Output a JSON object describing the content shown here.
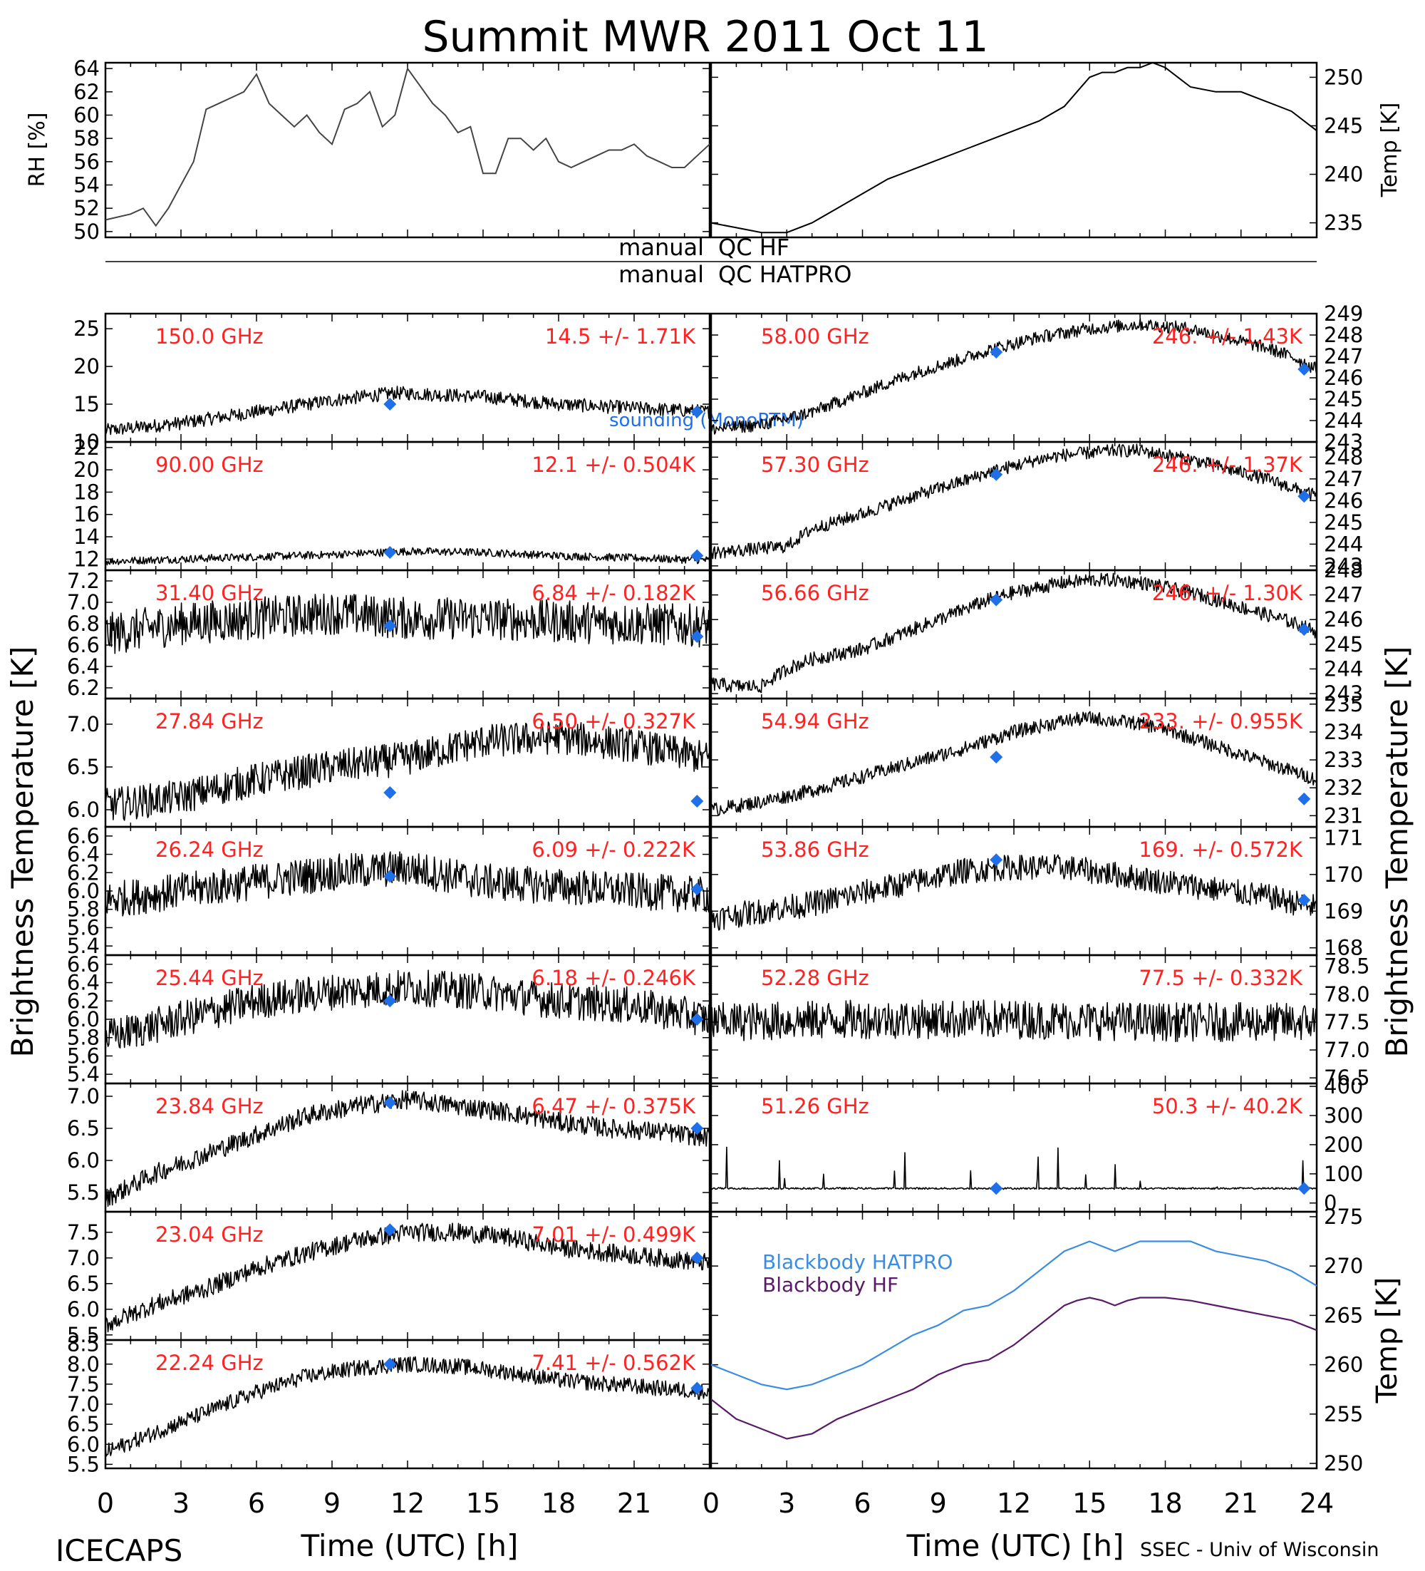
{
  "figure": {
    "title": "Summit MWR 2011 Oct 11",
    "footer_left": "ICECAPS",
    "footer_right": "SSEC - Univ of Wisconsin",
    "xlabel": "Time (UTC) [h]",
    "ylabel_left": "Brightness Temperature [K]",
    "ylabel_right": "Brightness Temperature [K]",
    "qc_labels": [
      {
        "left": "manual",
        "right": "QC HF"
      },
      {
        "left": "manual",
        "right": "QC HATPRO"
      }
    ],
    "sounding_legend": "sounding (MonoRTM)",
    "colors": {
      "trace": "#000000",
      "channel_label": "#ff2222",
      "sounding": "#1e6fe8",
      "bb_hatpro": "#3a8de0",
      "bb_hf": "#5a1a6a"
    }
  },
  "chart_data": [
    {
      "id": "rh",
      "type": "line",
      "ylabel": "RH [%]",
      "ylim": [
        49.5,
        64.5
      ],
      "yticks": [
        50,
        52,
        54,
        56,
        58,
        60,
        62,
        64
      ],
      "xlim": [
        0,
        24
      ],
      "x": [
        0,
        1,
        1.5,
        2,
        2.5,
        3,
        3.5,
        4,
        4.5,
        5,
        5.5,
        6,
        6.5,
        7,
        7.5,
        8,
        8.5,
        9,
        9.5,
        10,
        10.5,
        11,
        11.5,
        12,
        12.5,
        13,
        13.5,
        14,
        14.5,
        15,
        15.5,
        16,
        16.5,
        17,
        17.5,
        18,
        18.5,
        19,
        19.5,
        20,
        20.5,
        21,
        21.5,
        22,
        22.5,
        23,
        23.5,
        24
      ],
      "values": [
        51,
        51.5,
        52,
        50.5,
        52,
        54,
        56,
        60.5,
        61,
        61.5,
        62,
        63.5,
        61,
        60,
        59,
        60,
        58.5,
        57.5,
        60.5,
        61,
        62,
        59,
        60,
        64,
        62.5,
        61,
        60,
        58.5,
        59,
        55,
        55,
        58,
        58,
        57,
        58,
        56,
        55.5,
        56,
        56.5,
        57,
        57,
        57.5,
        56.5,
        56,
        55.5,
        55.5,
        56.5,
        57.5
      ]
    },
    {
      "id": "temp",
      "type": "line",
      "ylabel": "Temp [K]",
      "ylim": [
        233.5,
        251.5
      ],
      "yticks": [
        235,
        240,
        245,
        250
      ],
      "xlim": [
        0,
        24
      ],
      "x": [
        0,
        1,
        2,
        3,
        4,
        5,
        6,
        7,
        8,
        9,
        10,
        11,
        12,
        13,
        14,
        14.5,
        15,
        15.5,
        16,
        16.5,
        17,
        17.5,
        18,
        18.5,
        19,
        20,
        21,
        22,
        23,
        23.5,
        24
      ],
      "values": [
        235,
        234.5,
        234,
        234,
        235,
        236.5,
        238,
        239.5,
        240.5,
        241.5,
        242.5,
        243.5,
        244.5,
        245.5,
        247,
        248.5,
        250,
        250.5,
        250.5,
        251,
        251,
        251.5,
        251,
        250,
        249,
        248.5,
        248.5,
        247.5,
        246.5,
        245.5,
        244.5
      ]
    },
    {
      "id": "ch150",
      "side": "left",
      "label": "150.0 GHz",
      "stats": "14.5 +/-  1.71K",
      "ylim": [
        10,
        27
      ],
      "yticks": [
        10,
        15,
        20,
        25
      ],
      "noise": 0.9,
      "x": [
        0,
        3,
        6,
        9,
        11.5,
        15,
        18,
        21,
        24
      ],
      "values": [
        11.5,
        12.5,
        14,
        15.5,
        16.5,
        16,
        15,
        14.5,
        14
      ],
      "sounding": [
        [
          11.3,
          15
        ],
        [
          23.5,
          14
        ]
      ]
    },
    {
      "id": "ch90",
      "side": "left",
      "label": "90.00 GHz",
      "stats": "12.1 +/- 0.504K",
      "ylim": [
        11,
        22.5
      ],
      "yticks": [
        12,
        14,
        16,
        18,
        20,
        22
      ],
      "noise": 0.35,
      "x": [
        0,
        3,
        6,
        9,
        12,
        15,
        18,
        21,
        24
      ],
      "values": [
        11.8,
        12,
        12.2,
        12.4,
        12.7,
        12.6,
        12.3,
        12.1,
        11.9
      ],
      "sounding": [
        [
          11.3,
          12.6
        ],
        [
          23.5,
          12.3
        ]
      ]
    },
    {
      "id": "ch3140",
      "side": "left",
      "label": "31.40 GHz",
      "stats": "6.84 +/- 0.182K",
      "ylim": [
        6.1,
        7.3
      ],
      "yticks": [
        6.2,
        6.4,
        6.6,
        6.8,
        7.0,
        7.2
      ],
      "noise": 0.2,
      "x": [
        0,
        3,
        6,
        9,
        12,
        15,
        18,
        21,
        24
      ],
      "values": [
        6.7,
        6.8,
        6.85,
        6.9,
        6.85,
        6.85,
        6.82,
        6.8,
        6.78
      ],
      "sounding": [
        [
          11.3,
          6.78
        ],
        [
          23.5,
          6.68
        ]
      ]
    },
    {
      "id": "ch2784",
      "side": "left",
      "label": "27.84 GHz",
      "stats": "6.50 +/- 0.327K",
      "ylim": [
        5.8,
        7.3
      ],
      "yticks": [
        6.0,
        6.5,
        7.0
      ],
      "noise": 0.2,
      "x": [
        0,
        3,
        6,
        9,
        12,
        15,
        18,
        21,
        24
      ],
      "values": [
        6.05,
        6.15,
        6.35,
        6.5,
        6.6,
        6.8,
        6.85,
        6.75,
        6.6
      ],
      "sounding": [
        [
          11.3,
          6.2
        ],
        [
          23.5,
          6.1
        ]
      ]
    },
    {
      "id": "ch2624",
      "side": "left",
      "label": "26.24 GHz",
      "stats": "6.09 +/- 0.222K",
      "ylim": [
        5.3,
        6.7
      ],
      "yticks": [
        5.4,
        5.6,
        5.8,
        6.0,
        6.2,
        6.4,
        6.6
      ],
      "noise": 0.2,
      "x": [
        0,
        3,
        6,
        9,
        12,
        15,
        18,
        21,
        24
      ],
      "values": [
        5.9,
        6.0,
        6.1,
        6.2,
        6.25,
        6.1,
        6.05,
        6.0,
        5.95
      ],
      "sounding": [
        [
          11.3,
          6.16
        ],
        [
          23.5,
          6.02
        ]
      ]
    },
    {
      "id": "ch2544",
      "side": "left",
      "label": "25.44 GHz",
      "stats": "6.18 +/- 0.246K",
      "ylim": [
        5.3,
        6.7
      ],
      "yticks": [
        5.4,
        5.6,
        5.8,
        6.0,
        6.2,
        6.4,
        6.6
      ],
      "noise": 0.2,
      "x": [
        0,
        3,
        6,
        9,
        12,
        15,
        18,
        21,
        24
      ],
      "values": [
        5.8,
        6.0,
        6.2,
        6.3,
        6.35,
        6.3,
        6.2,
        6.15,
        6.0
      ],
      "sounding": [
        [
          11.3,
          6.2
        ],
        [
          23.5,
          6.0
        ]
      ]
    },
    {
      "id": "ch2384",
      "side": "left",
      "label": "23.84 GHz",
      "stats": "6.47 +/- 0.375K",
      "ylim": [
        5.2,
        7.2
      ],
      "yticks": [
        5.5,
        6.0,
        6.5,
        7.0
      ],
      "noise": 0.15,
      "x": [
        0,
        2,
        4,
        6,
        8,
        10,
        12,
        14,
        16,
        18,
        20,
        22,
        24
      ],
      "values": [
        5.4,
        5.8,
        6.1,
        6.4,
        6.7,
        6.85,
        6.95,
        6.85,
        6.75,
        6.6,
        6.5,
        6.45,
        6.35
      ],
      "sounding": [
        [
          11.3,
          6.9
        ],
        [
          23.5,
          6.5
        ]
      ]
    },
    {
      "id": "ch2304",
      "side": "left",
      "label": "23.04 GHz",
      "stats": "7.01 +/- 0.499K",
      "ylim": [
        5.4,
        7.9
      ],
      "yticks": [
        5.5,
        6.0,
        6.5,
        7.0,
        7.5
      ],
      "noise": 0.18,
      "x": [
        0,
        2,
        4,
        6,
        8,
        10,
        12,
        14,
        16,
        18,
        20,
        22,
        24
      ],
      "values": [
        5.7,
        6.1,
        6.4,
        6.8,
        7.1,
        7.35,
        7.5,
        7.5,
        7.4,
        7.2,
        7.1,
        7.0,
        6.9
      ],
      "sounding": [
        [
          11.3,
          7.55
        ],
        [
          23.5,
          7.0
        ]
      ]
    },
    {
      "id": "ch2224",
      "side": "left",
      "label": "22.24 GHz",
      "stats": "7.41 +/- 0.562K",
      "ylim": [
        5.4,
        8.6
      ],
      "yticks": [
        5.5,
        6.0,
        6.5,
        7.0,
        7.5,
        8.0,
        8.5
      ],
      "noise": 0.2,
      "x": [
        0,
        2,
        4,
        6,
        8,
        10,
        12,
        14,
        16,
        18,
        20,
        22,
        24
      ],
      "values": [
        5.8,
        6.3,
        6.8,
        7.3,
        7.7,
        7.9,
        8.0,
        7.95,
        7.8,
        7.6,
        7.5,
        7.4,
        7.3
      ],
      "sounding": [
        [
          11.3,
          8.0
        ],
        [
          23.5,
          7.4
        ]
      ]
    },
    {
      "id": "ch5800",
      "side": "right",
      "label": "58.00 GHz",
      "stats": "246.  +/-  1.43K",
      "ylim": [
        243,
        249
      ],
      "yticks": [
        243,
        244,
        245,
        246,
        247,
        248,
        249
      ],
      "noise": 0.3,
      "x": [
        0,
        2,
        4,
        6,
        8,
        10,
        11,
        12,
        13,
        14,
        15,
        16,
        17,
        18,
        19,
        20,
        21,
        22,
        23,
        24
      ],
      "values": [
        243.6,
        243.8,
        244.4,
        245.3,
        246.2,
        246.9,
        247.3,
        247.6,
        247.9,
        248.1,
        248.3,
        248.4,
        248.5,
        248.4,
        248.3,
        248.0,
        247.7,
        247.4,
        247.0,
        246.4
      ],
      "sounding": [
        [
          11.3,
          247.2
        ],
        [
          23.5,
          246.4
        ]
      ]
    },
    {
      "id": "ch5730",
      "side": "right",
      "label": "57.30 GHz",
      "stats": "246.  +/-  1.37K",
      "ylim": [
        242.8,
        248.7
      ],
      "yticks": [
        243,
        244,
        245,
        246,
        247,
        248
      ],
      "noise": 0.3,
      "x": [
        0,
        2,
        3,
        4,
        6,
        8,
        10,
        11,
        12,
        13,
        14,
        15,
        16,
        17,
        18,
        19,
        20,
        21,
        22,
        23,
        24
      ],
      "values": [
        243.6,
        243.8,
        243.9,
        244.7,
        245.4,
        246.2,
        246.9,
        247.3,
        247.6,
        247.9,
        248.1,
        248.2,
        248.3,
        248.3,
        248.1,
        247.9,
        247.6,
        247.3,
        247.0,
        246.6,
        246.2
      ],
      "sounding": [
        [
          11.3,
          247.2
        ],
        [
          23.5,
          246.2
        ]
      ]
    },
    {
      "id": "ch5666",
      "side": "right",
      "label": "56.66 GHz",
      "stats": "246.  +/-  1.30K",
      "ylim": [
        242.8,
        248
      ],
      "yticks": [
        243,
        244,
        245,
        246,
        247,
        248
      ],
      "noise": 0.28,
      "x": [
        0,
        1,
        2,
        3,
        4,
        6,
        8,
        10,
        11,
        12,
        13,
        14,
        15,
        16,
        17,
        18,
        19,
        20,
        21,
        22,
        23,
        24
      ],
      "values": [
        243.4,
        243.3,
        243.3,
        244.0,
        244.4,
        244.8,
        245.6,
        246.4,
        246.8,
        247.1,
        247.3,
        247.5,
        247.6,
        247.6,
        247.5,
        247.3,
        247.1,
        246.8,
        246.5,
        246.2,
        245.9,
        245.5
      ],
      "sounding": [
        [
          11.3,
          246.8
        ],
        [
          23.5,
          245.6
        ]
      ]
    },
    {
      "id": "ch5494",
      "side": "right",
      "label": "54.94 GHz",
      "stats": "233.  +/- 0.955K",
      "ylim": [
        230.6,
        235.2
      ],
      "yticks": [
        231,
        232,
        233,
        234,
        235
      ],
      "noise": 0.25,
      "x": [
        0,
        2,
        4,
        6,
        8,
        10,
        11,
        12,
        13,
        14,
        15,
        16,
        17,
        18,
        19,
        20,
        21,
        22,
        23,
        24
      ],
      "values": [
        231.2,
        231.5,
        231.9,
        232.4,
        232.9,
        233.4,
        233.7,
        234.0,
        234.2,
        234.4,
        234.5,
        234.4,
        234.3,
        234.1,
        233.8,
        233.5,
        233.2,
        232.9,
        232.6,
        232.3
      ],
      "sounding": [
        [
          11.3,
          233.1
        ],
        [
          23.5,
          231.6
        ]
      ]
    },
    {
      "id": "ch5386",
      "side": "right",
      "label": "53.86 GHz",
      "stats": "169.  +/- 0.572K",
      "ylim": [
        167.8,
        171.3
      ],
      "yticks": [
        168,
        169,
        170,
        171
      ],
      "noise": 0.35,
      "x": [
        0,
        2,
        4,
        6,
        8,
        10,
        12,
        14,
        15,
        16,
        18,
        20,
        22,
        24
      ],
      "values": [
        168.8,
        169.0,
        169.2,
        169.5,
        169.8,
        170.1,
        170.2,
        170.2,
        170.1,
        170.0,
        169.8,
        169.6,
        169.4,
        169.1
      ],
      "sounding": [
        [
          11.3,
          170.4
        ],
        [
          23.5,
          169.3
        ]
      ]
    },
    {
      "id": "ch5228",
      "side": "right",
      "label": "52.28 GHz",
      "stats": "77.5 +/- 0.332K",
      "ylim": [
        76.4,
        78.7
      ],
      "yticks": [
        76.5,
        77.0,
        77.5,
        78.0,
        78.5
      ],
      "noise": 0.35,
      "x": [
        0,
        6,
        12,
        18,
        24
      ],
      "values": [
        77.5,
        77.55,
        77.55,
        77.5,
        77.5
      ],
      "sounding": []
    },
    {
      "id": "ch5126",
      "side": "right",
      "label": "51.26 GHz",
      "stats": "50.3 +/-  40.2K",
      "ylim": [
        -30,
        410
      ],
      "yticks": [
        0,
        100,
        200,
        300,
        400
      ],
      "noise": 3,
      "spikes": true,
      "x": [
        0,
        24
      ],
      "values": [
        50,
        50
      ],
      "sounding": [
        [
          11.3,
          50
        ],
        [
          23.5,
          50
        ]
      ]
    },
    {
      "id": "blackbody",
      "type": "line",
      "ylabel": "Temp [K]",
      "ylim": [
        249.5,
        275.5
      ],
      "yticks": [
        250,
        255,
        260,
        265,
        270,
        275
      ],
      "xlim": [
        0,
        24
      ],
      "legend": [
        "Blackbody HATPRO",
        "Blackbody HF"
      ],
      "x": [
        0,
        1,
        2,
        3,
        4,
        5,
        6,
        7,
        8,
        9,
        10,
        11,
        12,
        13,
        14,
        14.5,
        15,
        15.5,
        16,
        16.5,
        17,
        18,
        19,
        20,
        21,
        22,
        23,
        24
      ],
      "series": [
        {
          "name": "Blackbody HATPRO",
          "values": [
            260,
            259,
            258,
            257.5,
            258,
            259,
            260,
            261.5,
            263,
            264,
            265.5,
            266,
            267.5,
            269.5,
            271.5,
            272,
            272.5,
            272,
            271.5,
            272,
            272.5,
            272.5,
            272.5,
            271.5,
            271,
            270.5,
            269.5,
            268
          ]
        },
        {
          "name": "Blackbody HF",
          "values": [
            256.5,
            254.5,
            253.5,
            252.5,
            253,
            254.5,
            255.5,
            256.5,
            257.5,
            259,
            260,
            260.5,
            262,
            264,
            266,
            266.5,
            266.8,
            266.5,
            266,
            266.5,
            266.8,
            266.8,
            266.5,
            266,
            265.5,
            265,
            264.5,
            263.5
          ]
        }
      ]
    }
  ]
}
